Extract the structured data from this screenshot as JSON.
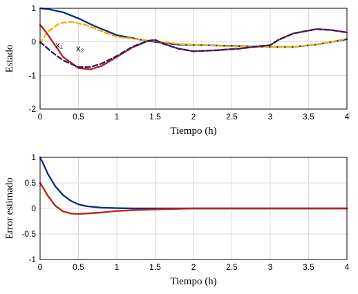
{
  "chart_data": [
    {
      "type": "line",
      "xlabel": "Tiempo (h)",
      "ylabel": "Estado",
      "xlim": [
        0,
        4
      ],
      "ylim": [
        -2,
        1
      ],
      "xticks": [
        "0",
        "0.5",
        "1",
        "1.5",
        "2",
        "2.5",
        "3",
        "3.5",
        "4"
      ],
      "yticks": [
        "1",
        "0",
        "-1",
        "-2"
      ],
      "grid": true,
      "annotations": [
        {
          "text": "x₁",
          "x": 0.25,
          "y": -0.18
        },
        {
          "text": "x₂",
          "x": 0.52,
          "y": -0.28
        }
      ],
      "series": [
        {
          "color": "#0b2d8c",
          "style": "solid",
          "x": [
            0,
            0.1,
            0.3,
            0.5,
            0.7,
            1.0,
            1.3,
            1.5,
            1.8,
            2.1,
            2.5,
            3.0,
            3.3,
            3.6,
            3.8,
            4.0
          ],
          "y": [
            1.0,
            0.98,
            0.88,
            0.7,
            0.48,
            0.2,
            0.07,
            0.0,
            -0.08,
            -0.1,
            -0.12,
            -0.15,
            -0.15,
            -0.08,
            0.0,
            0.08
          ]
        },
        {
          "color": "#f0b400",
          "style": "dashed",
          "x": [
            0,
            0.1,
            0.25,
            0.4,
            0.6,
            0.8,
            1.0,
            1.3,
            1.5,
            1.8,
            2.1,
            2.5,
            3.0,
            3.3,
            3.6,
            3.8,
            4.0
          ],
          "y": [
            -0.05,
            0.3,
            0.55,
            0.6,
            0.5,
            0.32,
            0.15,
            0.07,
            0.02,
            -0.06,
            -0.1,
            -0.13,
            -0.15,
            -0.15,
            -0.08,
            0.0,
            0.1
          ]
        },
        {
          "color": "#c0201a",
          "style": "solid",
          "x": [
            0,
            0.05,
            0.15,
            0.3,
            0.5,
            0.65,
            0.8,
            1.0,
            1.2,
            1.4,
            1.5,
            1.6,
            1.8,
            2.0,
            2.3,
            2.6,
            2.9,
            3.0,
            3.1,
            3.3,
            3.6,
            3.8,
            4.0
          ],
          "y": [
            0.5,
            0.38,
            0.05,
            -0.45,
            -0.78,
            -0.82,
            -0.72,
            -0.45,
            -0.17,
            0.02,
            0.05,
            -0.05,
            -0.2,
            -0.28,
            -0.25,
            -0.2,
            -0.12,
            -0.1,
            0.05,
            0.25,
            0.38,
            0.35,
            0.28
          ]
        },
        {
          "color": "#2a1f73",
          "style": "dashed",
          "x": [
            0,
            0.05,
            0.15,
            0.3,
            0.5,
            0.65,
            0.8,
            1.0,
            1.2,
            1.4,
            1.5,
            1.6,
            1.8,
            2.0,
            2.3,
            2.6,
            2.9,
            3.0,
            3.1,
            3.3,
            3.6,
            3.8,
            4.0
          ],
          "y": [
            0.0,
            -0.1,
            -0.3,
            -0.55,
            -0.75,
            -0.75,
            -0.65,
            -0.42,
            -0.15,
            0.03,
            0.06,
            -0.05,
            -0.2,
            -0.28,
            -0.25,
            -0.2,
            -0.12,
            -0.1,
            0.05,
            0.25,
            0.38,
            0.35,
            0.28
          ]
        }
      ]
    },
    {
      "type": "line",
      "xlabel": "Tiempo (h)",
      "ylabel": "Error estimado",
      "xlim": [
        0,
        4
      ],
      "ylim": [
        -1,
        1
      ],
      "xticks": [
        "0",
        "0.5",
        "1",
        "1.5",
        "2",
        "2.5",
        "3",
        "3.5",
        "4"
      ],
      "yticks": [
        "1",
        "0.5",
        "0",
        "-0.5",
        "-1"
      ],
      "grid": true,
      "series": [
        {
          "color": "#0b2d8c",
          "style": "solid",
          "x": [
            0,
            0.05,
            0.1,
            0.2,
            0.3,
            0.4,
            0.5,
            0.6,
            0.8,
            1.0,
            1.2,
            1.5,
            2.0,
            3.0,
            4.0
          ],
          "y": [
            1.0,
            0.85,
            0.68,
            0.43,
            0.26,
            0.15,
            0.08,
            0.045,
            0.015,
            0.005,
            0.0,
            0.0,
            0.0,
            0.0,
            0.0
          ]
        },
        {
          "color": "#c0201a",
          "style": "solid",
          "x": [
            0,
            0.05,
            0.1,
            0.2,
            0.3,
            0.4,
            0.5,
            0.6,
            0.8,
            1.0,
            1.3,
            1.6,
            2.0,
            3.0,
            4.0
          ],
          "y": [
            0.5,
            0.38,
            0.25,
            0.05,
            -0.06,
            -0.1,
            -0.11,
            -0.1,
            -0.08,
            -0.05,
            -0.03,
            -0.015,
            0.0,
            0.0,
            0.0
          ]
        }
      ]
    }
  ]
}
